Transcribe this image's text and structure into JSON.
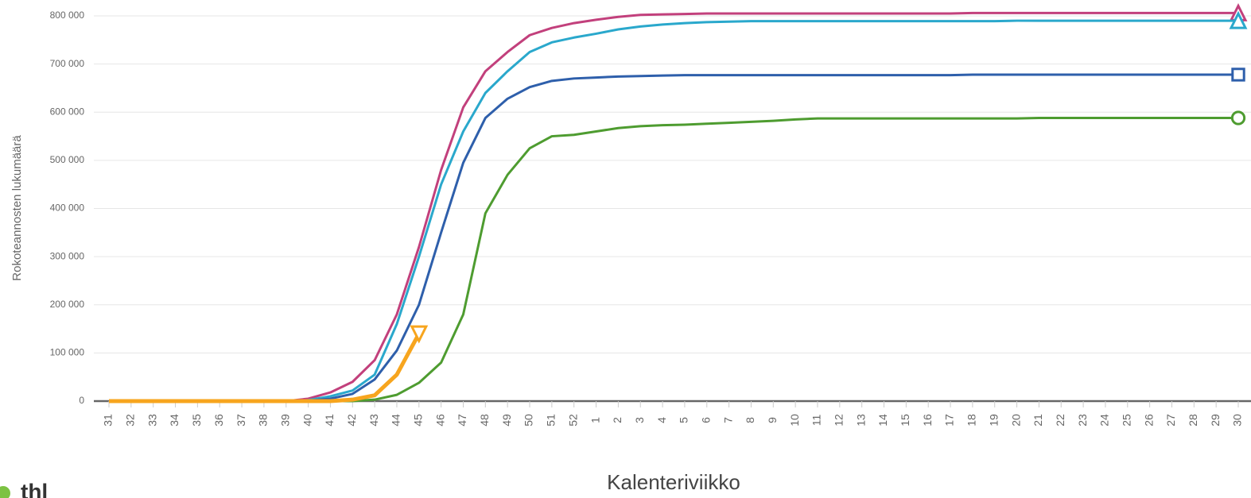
{
  "chart_data": {
    "type": "line",
    "y_label": "Rokoteannosten lukumäärä",
    "x_label": "Kalenteriviikko",
    "logo": "thl",
    "categories": [
      "31",
      "32",
      "33",
      "34",
      "35",
      "36",
      "37",
      "38",
      "39",
      "40",
      "41",
      "42",
      "43",
      "44",
      "45",
      "46",
      "47",
      "48",
      "49",
      "50",
      "51",
      "52",
      "1",
      "2",
      "3",
      "4",
      "5",
      "6",
      "7",
      "8",
      "9",
      "10",
      "11",
      "12",
      "13",
      "14",
      "15",
      "16",
      "17",
      "18",
      "19",
      "20",
      "21",
      "22",
      "23",
      "24",
      "25",
      "26",
      "27",
      "28",
      "29",
      "30"
    ],
    "ylim": [
      0,
      800000
    ],
    "yticks": [
      0,
      {
        "value": 100000,
        "label": "100 000"
      },
      {
        "value": 200000,
        "label": "200 000"
      },
      {
        "value": 300000,
        "label": "300 000"
      },
      {
        "value": 400000,
        "label": "400 000"
      },
      {
        "value": 500000,
        "label": "500 000"
      },
      {
        "value": 600000,
        "label": "600 000"
      },
      {
        "value": 700000,
        "label": "700 000"
      },
      {
        "value": 800000,
        "label": "800 000"
      }
    ],
    "grid": true,
    "series": [
      {
        "color": "#c2407c",
        "marker": "triangle-up",
        "values": [
          0,
          0,
          0,
          0,
          0,
          0,
          0,
          0,
          0,
          5000,
          18000,
          40000,
          85000,
          180000,
          320000,
          480000,
          610000,
          685000,
          725000,
          760000,
          775000,
          785000,
          792000,
          798000,
          802000,
          803000,
          804000,
          805000,
          805000,
          805000,
          805000,
          805000,
          805000,
          805000,
          805000,
          805000,
          805000,
          805000,
          805000,
          806000,
          806000,
          806000,
          806000,
          806000,
          806000,
          806000,
          806000,
          806000,
          806000,
          806000,
          806000,
          806000
        ]
      },
      {
        "color": "#2aa8cc",
        "marker": "triangle-up",
        "values": [
          0,
          0,
          0,
          0,
          0,
          0,
          0,
          0,
          0,
          2000,
          10000,
          22000,
          55000,
          160000,
          300000,
          450000,
          560000,
          640000,
          685000,
          725000,
          745000,
          755000,
          763000,
          772000,
          778000,
          782000,
          785000,
          787000,
          788000,
          789000,
          789000,
          789000,
          789000,
          789000,
          789000,
          789000,
          789000,
          789000,
          789000,
          789000,
          789000,
          790000,
          790000,
          790000,
          790000,
          790000,
          790000,
          790000,
          790000,
          790000,
          790000,
          790000
        ]
      },
      {
        "color": "#2e5fab",
        "marker": "square",
        "values": [
          0,
          0,
          0,
          0,
          0,
          0,
          0,
          0,
          0,
          1000,
          5000,
          15000,
          45000,
          105000,
          200000,
          350000,
          495000,
          588000,
          628000,
          652000,
          665000,
          670000,
          672000,
          674000,
          675000,
          676000,
          677000,
          677000,
          677000,
          677000,
          677000,
          677000,
          677000,
          677000,
          677000,
          677000,
          677000,
          677000,
          677000,
          678000,
          678000,
          678000,
          678000,
          678000,
          678000,
          678000,
          678000,
          678000,
          678000,
          678000,
          678000,
          678000
        ]
      },
      {
        "color": "#4e9c30",
        "marker": "circle",
        "values": [
          0,
          0,
          0,
          0,
          0,
          0,
          0,
          0,
          0,
          0,
          0,
          0,
          3000,
          13000,
          38000,
          80000,
          180000,
          390000,
          470000,
          525000,
          550000,
          553000,
          560000,
          567000,
          571000,
          573000,
          574000,
          576000,
          578000,
          580000,
          582000,
          585000,
          587000,
          587000,
          587000,
          587000,
          587000,
          587000,
          587000,
          587000,
          587000,
          587000,
          588000,
          588000,
          588000,
          588000,
          588000,
          588000,
          588000,
          588000,
          588000,
          588000
        ]
      },
      {
        "color": "#f7a51e",
        "marker": "triangle-down",
        "width": 5,
        "values": [
          0,
          0,
          0,
          0,
          0,
          0,
          0,
          0,
          0,
          0,
          0,
          3000,
          12000,
          55000,
          140000,
          null,
          null,
          null,
          null,
          null,
          null,
          null,
          null,
          null,
          null,
          null,
          null,
          null,
          null,
          null,
          null,
          null,
          null,
          null,
          null,
          null,
          null,
          null,
          null,
          null,
          null,
          null,
          null,
          null,
          null,
          null,
          null,
          null,
          null,
          null,
          null,
          null
        ]
      }
    ]
  }
}
